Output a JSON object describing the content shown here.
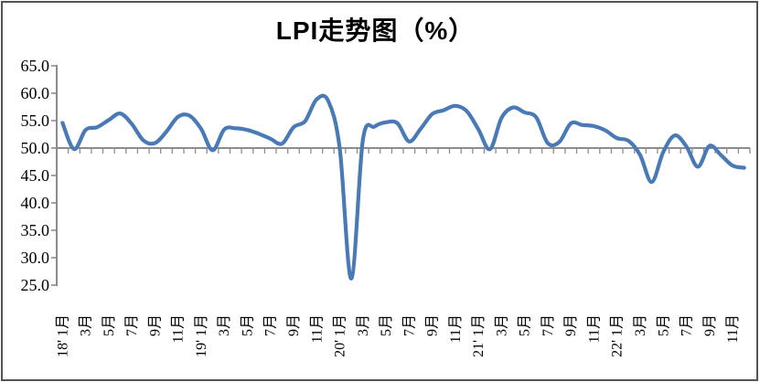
{
  "title": "LPI走势图（%）",
  "colors": {
    "line": "#4a7ab5",
    "axis": "#8c8c8c",
    "border": "#545454",
    "title": "#000000",
    "background": "#ffffff"
  },
  "chart_data": {
    "type": "line",
    "title": "LPI走势图（%）",
    "smoothed": true,
    "frequency": "monthly",
    "n_points": 60,
    "x_axis": {
      "tick_labels": [
        "18' 1月",
        "3月",
        "5月",
        "7月",
        "9月",
        "11月",
        "19' 1月",
        "3月",
        "5月",
        "7月",
        "9月",
        "11月",
        "20' 1月",
        "3月",
        "5月",
        "7月",
        "9月",
        "11月",
        "21' 1月",
        "3月",
        "5月",
        "7月",
        "9月",
        "11月",
        "22' 1月",
        "3月",
        "5月",
        "7月",
        "9月",
        "11月"
      ],
      "label_every_n_months": 2,
      "crosses_y_at": 50,
      "label_rotation_deg": -90
    },
    "y_axis": {
      "min": 25.0,
      "max": 65.0,
      "step": 5.0,
      "tick_labels": [
        "65.0",
        "60.0",
        "55.0",
        "50.0",
        "45.0",
        "40.0",
        "35.0",
        "30.0",
        "25.0"
      ]
    },
    "series": [
      {
        "name": "LPI",
        "values": [
          54.6,
          49.8,
          53.3,
          53.8,
          55.1,
          56.3,
          54.4,
          51.4,
          50.9,
          53.0,
          55.7,
          55.9,
          53.5,
          49.6,
          53.4,
          53.6,
          53.3,
          52.6,
          51.7,
          50.8,
          53.8,
          54.9,
          58.9,
          58.6,
          49.9,
          26.2,
          51.5,
          53.9,
          54.7,
          54.5,
          51.2,
          53.5,
          56.2,
          56.9,
          57.7,
          56.7,
          53.4,
          49.8,
          55.5,
          57.4,
          56.5,
          55.6,
          50.9,
          51.1,
          54.5,
          54.2,
          54.0,
          53.2,
          51.8,
          51.3,
          48.7,
          43.8,
          49.3,
          52.3,
          50.3,
          46.6,
          50.4,
          48.7,
          46.8,
          46.4
        ]
      }
    ],
    "legend": null,
    "grid": false
  }
}
